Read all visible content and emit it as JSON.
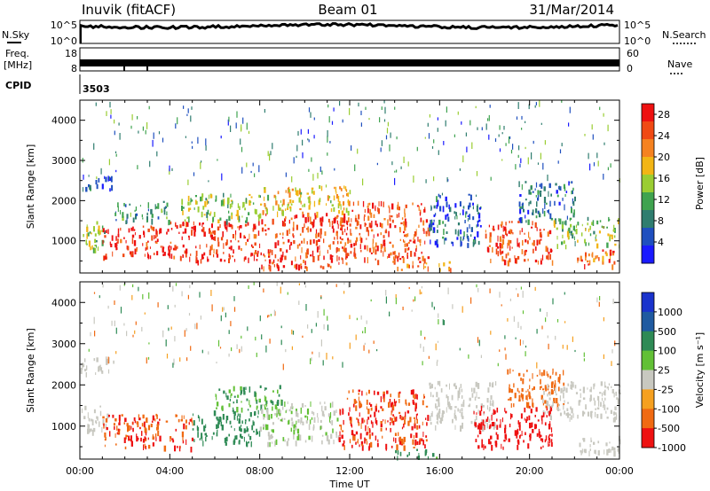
{
  "header": {
    "station": "Inuvik (fitACF)",
    "beam": "Beam 01",
    "date": "31/Mar/2014"
  },
  "strips": {
    "nsky_label": "N.Sky",
    "nsky_ticks": [
      "10^5",
      "10^0"
    ],
    "nsearch_label": "N.Search",
    "nsearch_ticks": [
      "10^5",
      "10^0"
    ],
    "freq_label": "Freq.",
    "freq_unit": "[MHz]",
    "freq_ticks": [
      "18",
      "8"
    ],
    "nave_label": "Nave",
    "nave_ticks": [
      "60",
      "0"
    ],
    "cpid_label": "CPID",
    "cpid_value": "3503"
  },
  "chart_data": [
    {
      "type": "heatmap",
      "name": "power",
      "xlabel": "Time UT",
      "ylabel": "Slant Range [km]",
      "x_ticks": [
        "00:00",
        "04:00",
        "08:00",
        "12:00",
        "16:00",
        "20:00",
        "00:00"
      ],
      "xlim_hours": [
        0,
        24
      ],
      "y_ticks": [
        1000,
        2000,
        3000,
        4000
      ],
      "ylim": [
        200,
        4500
      ],
      "colorbar": {
        "label": "Power [dB]",
        "ticks": [
          "4",
          "8",
          "12",
          "16",
          "20",
          "24",
          "28"
        ],
        "range": [
          0,
          30
        ],
        "colors": [
          "#1a1aff",
          "#1f4fbf",
          "#2f7d6f",
          "#3fa34f",
          "#9acd32",
          "#f2b515",
          "#f58220",
          "#f04a14",
          "#ee1111"
        ]
      },
      "regions": [
        {
          "t": [
            0.0,
            1.2
          ],
          "r": [
            800,
            1500
          ],
          "v": 14
        },
        {
          "t": [
            0.0,
            1.4
          ],
          "r": [
            2300,
            2700
          ],
          "v": 6
        },
        {
          "t": [
            1.0,
            4.0
          ],
          "r": [
            600,
            1400
          ],
          "v": 28
        },
        {
          "t": [
            1.5,
            4.0
          ],
          "r": [
            1500,
            2000
          ],
          "v": 10
        },
        {
          "t": [
            4.0,
            8.0
          ],
          "r": [
            500,
            1500
          ],
          "v": 27
        },
        {
          "t": [
            4.5,
            8.0
          ],
          "r": [
            1500,
            2200
          ],
          "v": 14
        },
        {
          "t": [
            8.0,
            12.0
          ],
          "r": [
            350,
            1700
          ],
          "v": 26
        },
        {
          "t": [
            8.0,
            12.0
          ],
          "r": [
            1700,
            2400
          ],
          "v": 18
        },
        {
          "t": [
            12.0,
            15.5
          ],
          "r": [
            500,
            2000
          ],
          "v": 25
        },
        {
          "t": [
            14.0,
            16.5
          ],
          "r": [
            300,
            500
          ],
          "v": 22
        },
        {
          "t": [
            15.5,
            17.8
          ],
          "r": [
            900,
            2200
          ],
          "v": 6
        },
        {
          "t": [
            18.0,
            21.0
          ],
          "r": [
            500,
            1500
          ],
          "v": 26
        },
        {
          "t": [
            19.5,
            22.0
          ],
          "r": [
            1500,
            2500
          ],
          "v": 7
        },
        {
          "t": [
            21.0,
            24.0
          ],
          "r": [
            900,
            1600
          ],
          "v": 14
        },
        {
          "t": [
            22.0,
            24.0
          ],
          "r": [
            400,
            800
          ],
          "v": 24
        }
      ]
    },
    {
      "type": "heatmap",
      "name": "velocity",
      "xlabel": "Time UT",
      "ylabel": "Slant Range [km]",
      "x_ticks": [
        "00:00",
        "04:00",
        "08:00",
        "12:00",
        "16:00",
        "20:00",
        "00:00"
      ],
      "xlim_hours": [
        0,
        24
      ],
      "y_ticks": [
        1000,
        2000,
        3000,
        4000
      ],
      "ylim": [
        200,
        4500
      ],
      "colorbar": {
        "label": "Velocity [m s⁻¹]",
        "ticks": [
          "1000",
          "500",
          "100",
          "25",
          "-25",
          "-100",
          "-500",
          "-1000"
        ],
        "colors": [
          "#1a33cc",
          "#1f5aa0",
          "#2e8a55",
          "#62c036",
          "#c8c8c0",
          "#f5a020",
          "#f06a12",
          "#ee1111"
        ]
      },
      "regions": [
        {
          "t": [
            0.0,
            1.2
          ],
          "r": [
            900,
            1500
          ],
          "v": 0
        },
        {
          "t": [
            0.0,
            1.5
          ],
          "r": [
            2300,
            2700
          ],
          "v": 0
        },
        {
          "t": [
            1.0,
            5.0
          ],
          "r": [
            500,
            1300
          ],
          "v": -300
        },
        {
          "t": [
            5.0,
            8.0
          ],
          "r": [
            600,
            1400
          ],
          "v": 150
        },
        {
          "t": [
            6.0,
            9.0
          ],
          "r": [
            1400,
            2000
          ],
          "v": 60
        },
        {
          "t": [
            8.0,
            11.5
          ],
          "r": [
            600,
            1600
          ],
          "v": 20
        },
        {
          "t": [
            11.5,
            15.5
          ],
          "r": [
            500,
            1900
          ],
          "v": -300
        },
        {
          "t": [
            14.0,
            16.0
          ],
          "r": [
            250,
            450
          ],
          "v": 80
        },
        {
          "t": [
            15.5,
            18.5
          ],
          "r": [
            1000,
            2100
          ],
          "v": 0
        },
        {
          "t": [
            17.5,
            21.0
          ],
          "r": [
            500,
            1500
          ],
          "v": -700
        },
        {
          "t": [
            19.0,
            21.5
          ],
          "r": [
            1500,
            2400
          ],
          "v": -150
        },
        {
          "t": [
            20.5,
            24.0
          ],
          "r": [
            1200,
            2100
          ],
          "v": 0
        },
        {
          "t": [
            22.0,
            24.0
          ],
          "r": [
            400,
            800
          ],
          "v": 0
        }
      ]
    }
  ]
}
